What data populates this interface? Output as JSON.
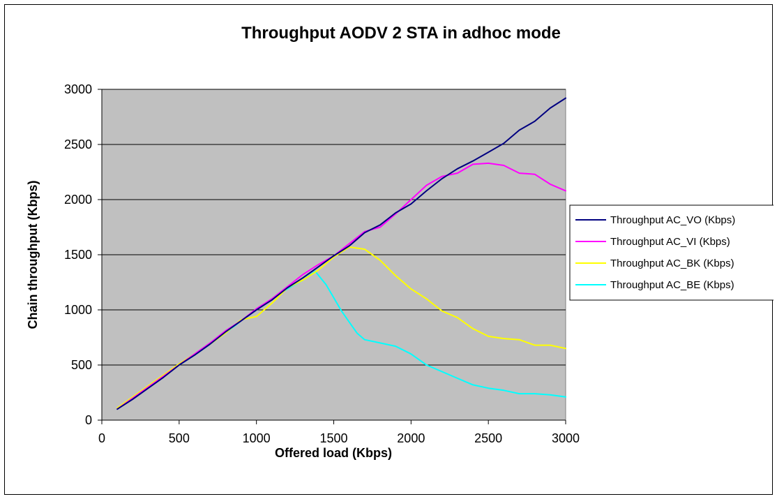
{
  "chart_data": {
    "type": "line",
    "title": "Throughput AODV 2 STA in adhoc mode",
    "xlabel": "Offered load (Kbps)",
    "ylabel": "Chain throughput (Kbps)",
    "xlim": [
      0,
      3000
    ],
    "ylim": [
      0,
      3000
    ],
    "xticks": [
      0,
      500,
      1000,
      1500,
      2000,
      2500,
      3000
    ],
    "yticks": [
      0,
      500,
      1000,
      1500,
      2000,
      2500,
      3000
    ],
    "grid": "horizontal",
    "plot_background": "#C0C0C0",
    "legend_position": "right",
    "series": [
      {
        "name": "Throughput AC_VO (Kbps)",
        "color": "#000080",
        "x": [
          100,
          200,
          300,
          400,
          500,
          600,
          700,
          800,
          900,
          1000,
          1100,
          1200,
          1300,
          1400,
          1500,
          1600,
          1700,
          1800,
          1900,
          2000,
          2100,
          2200,
          2300,
          2400,
          2500,
          2600,
          2700,
          2800,
          2900,
          3000
        ],
        "values": [
          100,
          190,
          290,
          390,
          500,
          590,
          690,
          800,
          900,
          1000,
          1090,
          1200,
          1290,
          1390,
          1490,
          1580,
          1700,
          1770,
          1880,
          1960,
          2080,
          2190,
          2280,
          2350,
          2430,
          2510,
          2630,
          2710,
          2830,
          2920
        ]
      },
      {
        "name": "Throughput AC_VI (Kbps)",
        "color": "#FF00FF",
        "x": [
          100,
          200,
          300,
          400,
          500,
          600,
          700,
          800,
          900,
          1000,
          1100,
          1200,
          1300,
          1400,
          1500,
          1600,
          1700,
          1800,
          1900,
          2000,
          2100,
          2200,
          2300,
          2400,
          2500,
          2600,
          2700,
          2800,
          2900,
          3000
        ],
        "values": [
          100,
          200,
          300,
          400,
          500,
          600,
          700,
          810,
          900,
          1010,
          1100,
          1210,
          1320,
          1410,
          1490,
          1600,
          1710,
          1750,
          1870,
          2000,
          2130,
          2210,
          2240,
          2320,
          2330,
          2310,
          2240,
          2230,
          2140,
          2080
        ]
      },
      {
        "name": "Throughput AC_BK (Kbps)",
        "color": "#FFFF00",
        "x": [
          100,
          200,
          300,
          400,
          500,
          600,
          700,
          800,
          900,
          1000,
          1100,
          1200,
          1300,
          1400,
          1500,
          1600,
          1700,
          1800,
          1900,
          2000,
          2100,
          2200,
          2300,
          2400,
          2500,
          2600,
          2700,
          2800,
          2900,
          3000
        ],
        "values": [
          110,
          210,
          310,
          410,
          510,
          600,
          690,
          790,
          910,
          940,
          1060,
          1200,
          1270,
          1360,
          1480,
          1570,
          1550,
          1450,
          1310,
          1190,
          1100,
          990,
          930,
          830,
          760,
          740,
          730,
          680,
          680,
          650
        ]
      },
      {
        "name": "Throughput AC_BE (Kbps)",
        "color": "#00FFFF",
        "x": [
          100,
          200,
          300,
          400,
          500,
          600,
          700,
          800,
          900,
          1000,
          1100,
          1200,
          1300,
          1380,
          1450,
          1500,
          1550,
          1600,
          1650,
          1700,
          1800,
          1900,
          2000,
          2100,
          2200,
          2300,
          2400,
          2500,
          2600,
          2700,
          2800,
          2900,
          3000
        ],
        "values": [
          100,
          200,
          300,
          400,
          500,
          590,
          690,
          790,
          900,
          1000,
          1100,
          1190,
          1270,
          1350,
          1230,
          1110,
          990,
          890,
          790,
          730,
          700,
          670,
          600,
          500,
          440,
          380,
          320,
          290,
          270,
          240,
          240,
          230,
          210
        ]
      }
    ]
  }
}
